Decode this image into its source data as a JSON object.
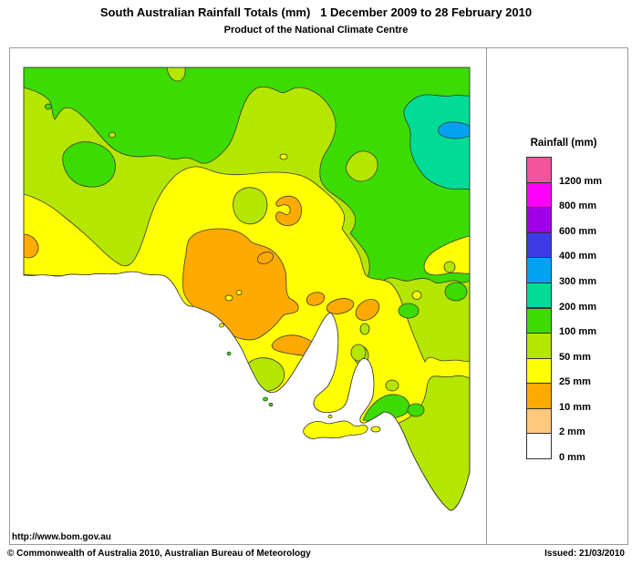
{
  "header": {
    "title": "South Australian Rainfall Totals (mm)   1 December 2009 to 28 February 2010",
    "subtitle": "Product of the National Climate Centre"
  },
  "legend": {
    "title": "Rainfall (mm)",
    "entries": [
      {
        "label": "1200 mm",
        "color": "#F4549B"
      },
      {
        "label": "800 mm",
        "color": "#FF00FF"
      },
      {
        "label": "600 mm",
        "color": "#A000E6"
      },
      {
        "label": "400 mm",
        "color": "#3C3CE6"
      },
      {
        "label": "300 mm",
        "color": "#00A2F0"
      },
      {
        "label": "200 mm",
        "color": "#00DC96"
      },
      {
        "label": "100 mm",
        "color": "#3CDC00"
      },
      {
        "label": "50 mm",
        "color": "#B4E600"
      },
      {
        "label": "25 mm",
        "color": "#FFFF00"
      },
      {
        "label": "10 mm",
        "color": "#FFAA00"
      },
      {
        "label": "2 mm",
        "color": "#FFC87D"
      },
      {
        "label": "0 mm",
        "color": "#FFFFFF"
      }
    ]
  },
  "palette": {
    "green100": "#3CDC00",
    "yellowgreen50": "#B4E600",
    "yellow25": "#FFFF00",
    "orange10": "#FFAA00",
    "teal200": "#00DC96",
    "blue300": "#00A2F0",
    "ocean": "#FFFFFF"
  },
  "footer": {
    "url": "http://www.bom.gov.au",
    "copyright": "© Commonwealth of Australia 2010, Australian Bureau of Meteorology",
    "issued": "Issued: 21/03/2010"
  }
}
